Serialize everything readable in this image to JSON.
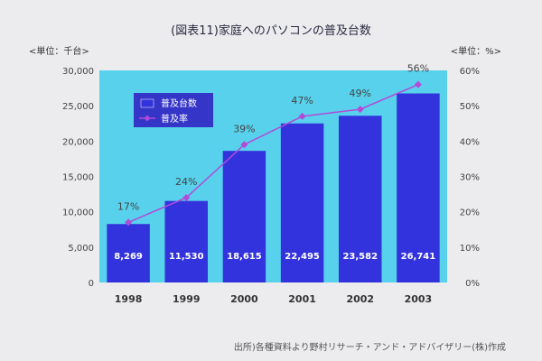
{
  "chart_data": {
    "type": "bar",
    "title": "(図表11)家庭へのパソコンの普及台数",
    "ylabel_left": "<単位：千台>",
    "ylabel_right": "<単位：%>",
    "categories": [
      "1998",
      "1999",
      "2000",
      "2001",
      "2002",
      "2003"
    ],
    "series": [
      {
        "name": "普及台数",
        "type": "bar",
        "axis": "left",
        "values": [
          8269,
          11530,
          18615,
          22495,
          23582,
          26741
        ],
        "labels": [
          "8,269",
          "11,530",
          "18,615",
          "22,495",
          "23,582",
          "26,741"
        ]
      },
      {
        "name": "普及率",
        "type": "line",
        "axis": "right",
        "values": [
          17,
          24,
          39,
          47,
          49,
          56
        ],
        "labels": [
          "17%",
          "24%",
          "39%",
          "47%",
          "49%",
          "56%"
        ]
      }
    ],
    "ylim_left": [
      0,
      30000
    ],
    "yticks_left": [
      "0",
      "5,000",
      "10,000",
      "15,000",
      "20,000",
      "25,000",
      "30,000"
    ],
    "ylim_right": [
      0,
      60
    ],
    "yticks_right": [
      "0%",
      "10%",
      "20%",
      "30%",
      "40%",
      "50%",
      "60%"
    ],
    "legend_position": "top-left",
    "grid": false
  },
  "source_note": "出所)各種資料より野村リサーチ・アンド・アドバイザリー(株)作成",
  "colors": {
    "plot_bg": "#57d1ec",
    "bar": "#3333dd",
    "line": "#b24ad8",
    "legend_bg": "#3535c8"
  }
}
